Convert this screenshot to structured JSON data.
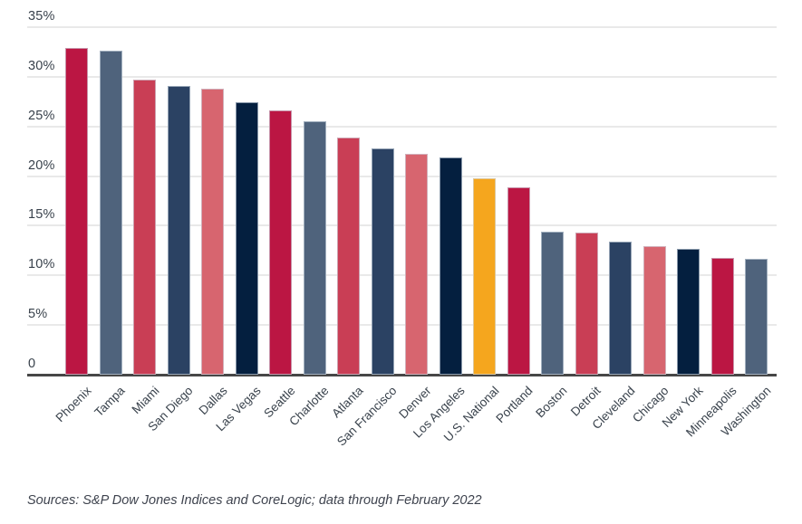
{
  "chart_data": {
    "type": "bar",
    "title": "",
    "xlabel": "",
    "ylabel": "",
    "ylim": [
      0,
      35
    ],
    "grid": true,
    "legend": false,
    "categories": [
      "Phoenix",
      "Tampa",
      "Miami",
      "San Diego",
      "Dallas",
      "Las Vegas",
      "Seattle",
      "Charlotte",
      "Atlanta",
      "San Francisco",
      "Denver",
      "Los Angeles",
      "U.S. National",
      "Portland",
      "Boston",
      "Detroit",
      "Cleveland",
      "Chicago",
      "New York",
      "Minneapolis",
      "Washington"
    ],
    "values": [
      32.9,
      32.6,
      29.7,
      29.1,
      28.8,
      27.4,
      26.6,
      25.5,
      23.9,
      22.8,
      22.2,
      21.9,
      19.8,
      18.9,
      14.4,
      14.3,
      13.4,
      12.9,
      12.7,
      11.8,
      11.7
    ],
    "bar_colors": [
      "#BB1643",
      "#4F637C",
      "#C93E55",
      "#2B4263",
      "#D7656F",
      "#041F3F",
      "#BB1643",
      "#4F637C",
      "#C93E55",
      "#2B4263",
      "#D7656F",
      "#041F3F",
      "#F5A61E",
      "#BB1643",
      "#4F637C",
      "#C93E55",
      "#2B4263",
      "#D7656F",
      "#041F3F",
      "#BB1643",
      "#4F637C"
    ],
    "highlight_category": "U.S. National",
    "highlight_color": "#F5A61E",
    "palette": {
      "crimson": "#BB1643",
      "slate": "#4F637C",
      "red": "#C93E55",
      "navy": "#2B4263",
      "rose": "#D7656F",
      "dark_navy": "#041F3F",
      "gold": "#F5A61E"
    },
    "yticks": [
      {
        "value": 35,
        "label": "35%"
      },
      {
        "value": 30,
        "label": "30%"
      },
      {
        "value": 25,
        "label": "25%"
      },
      {
        "value": 20,
        "label": "20%"
      },
      {
        "value": 15,
        "label": "15%"
      },
      {
        "value": 10,
        "label": "10%"
      },
      {
        "value": 5,
        "label": "5%"
      },
      {
        "value": 0,
        "label": "0"
      }
    ],
    "gridline_color": "#e9e9e9",
    "axis_label_color": "#39424c",
    "source_note": "Sources: S&P Dow Jones Indices and CoreLogic; data through February 2022"
  }
}
